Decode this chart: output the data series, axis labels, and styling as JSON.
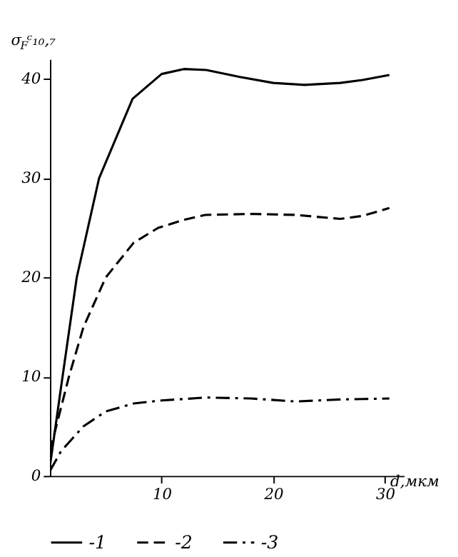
{
  "chart_data": {
    "type": "line",
    "ylabel": "σ$_{F}$ᶜ₁₀,₇",
    "xlabel": "d,мкм",
    "xlim": [
      0,
      31.7
    ],
    "ylim": [
      0,
      42
    ],
    "xticks": [
      10,
      20,
      30
    ],
    "yticks": [
      0,
      10,
      20,
      30,
      40
    ],
    "grid": false,
    "legend": "bottom",
    "marker": "none",
    "series": [
      {
        "name": "-1",
        "color": "#000000",
        "line_style": "solid",
        "x": [
          0,
          1,
          2.4,
          4.4,
          7.4,
          10,
          12,
          14,
          17,
          20,
          22.8,
          26,
          28,
          30.4
        ],
        "values": [
          1,
          9,
          20,
          30,
          38,
          40.5,
          41,
          40.9,
          40.2,
          39.6,
          39.4,
          39.6,
          39.9,
          40.4
        ]
      },
      {
        "name": "-2",
        "color": "#000000",
        "line_style": "dashed",
        "x": [
          0,
          1.7,
          3,
          5,
          7.5,
          9.7,
          12,
          13.9,
          18,
          22,
          26,
          28,
          30.4
        ],
        "values": [
          2.5,
          10,
          15,
          20,
          23.5,
          25,
          25.8,
          26.3,
          26.4,
          26.3,
          25.9,
          26.2,
          27
        ]
      },
      {
        "name": "-3",
        "color": "#000000",
        "line_style": "dashdot",
        "x": [
          0,
          1,
          3,
          5,
          7.5,
          10,
          14,
          18,
          22,
          26,
          30.4
        ],
        "values": [
          0.5,
          2.5,
          5,
          6.5,
          7.3,
          7.6,
          7.9,
          7.8,
          7.5,
          7.7,
          7.8
        ]
      }
    ]
  }
}
